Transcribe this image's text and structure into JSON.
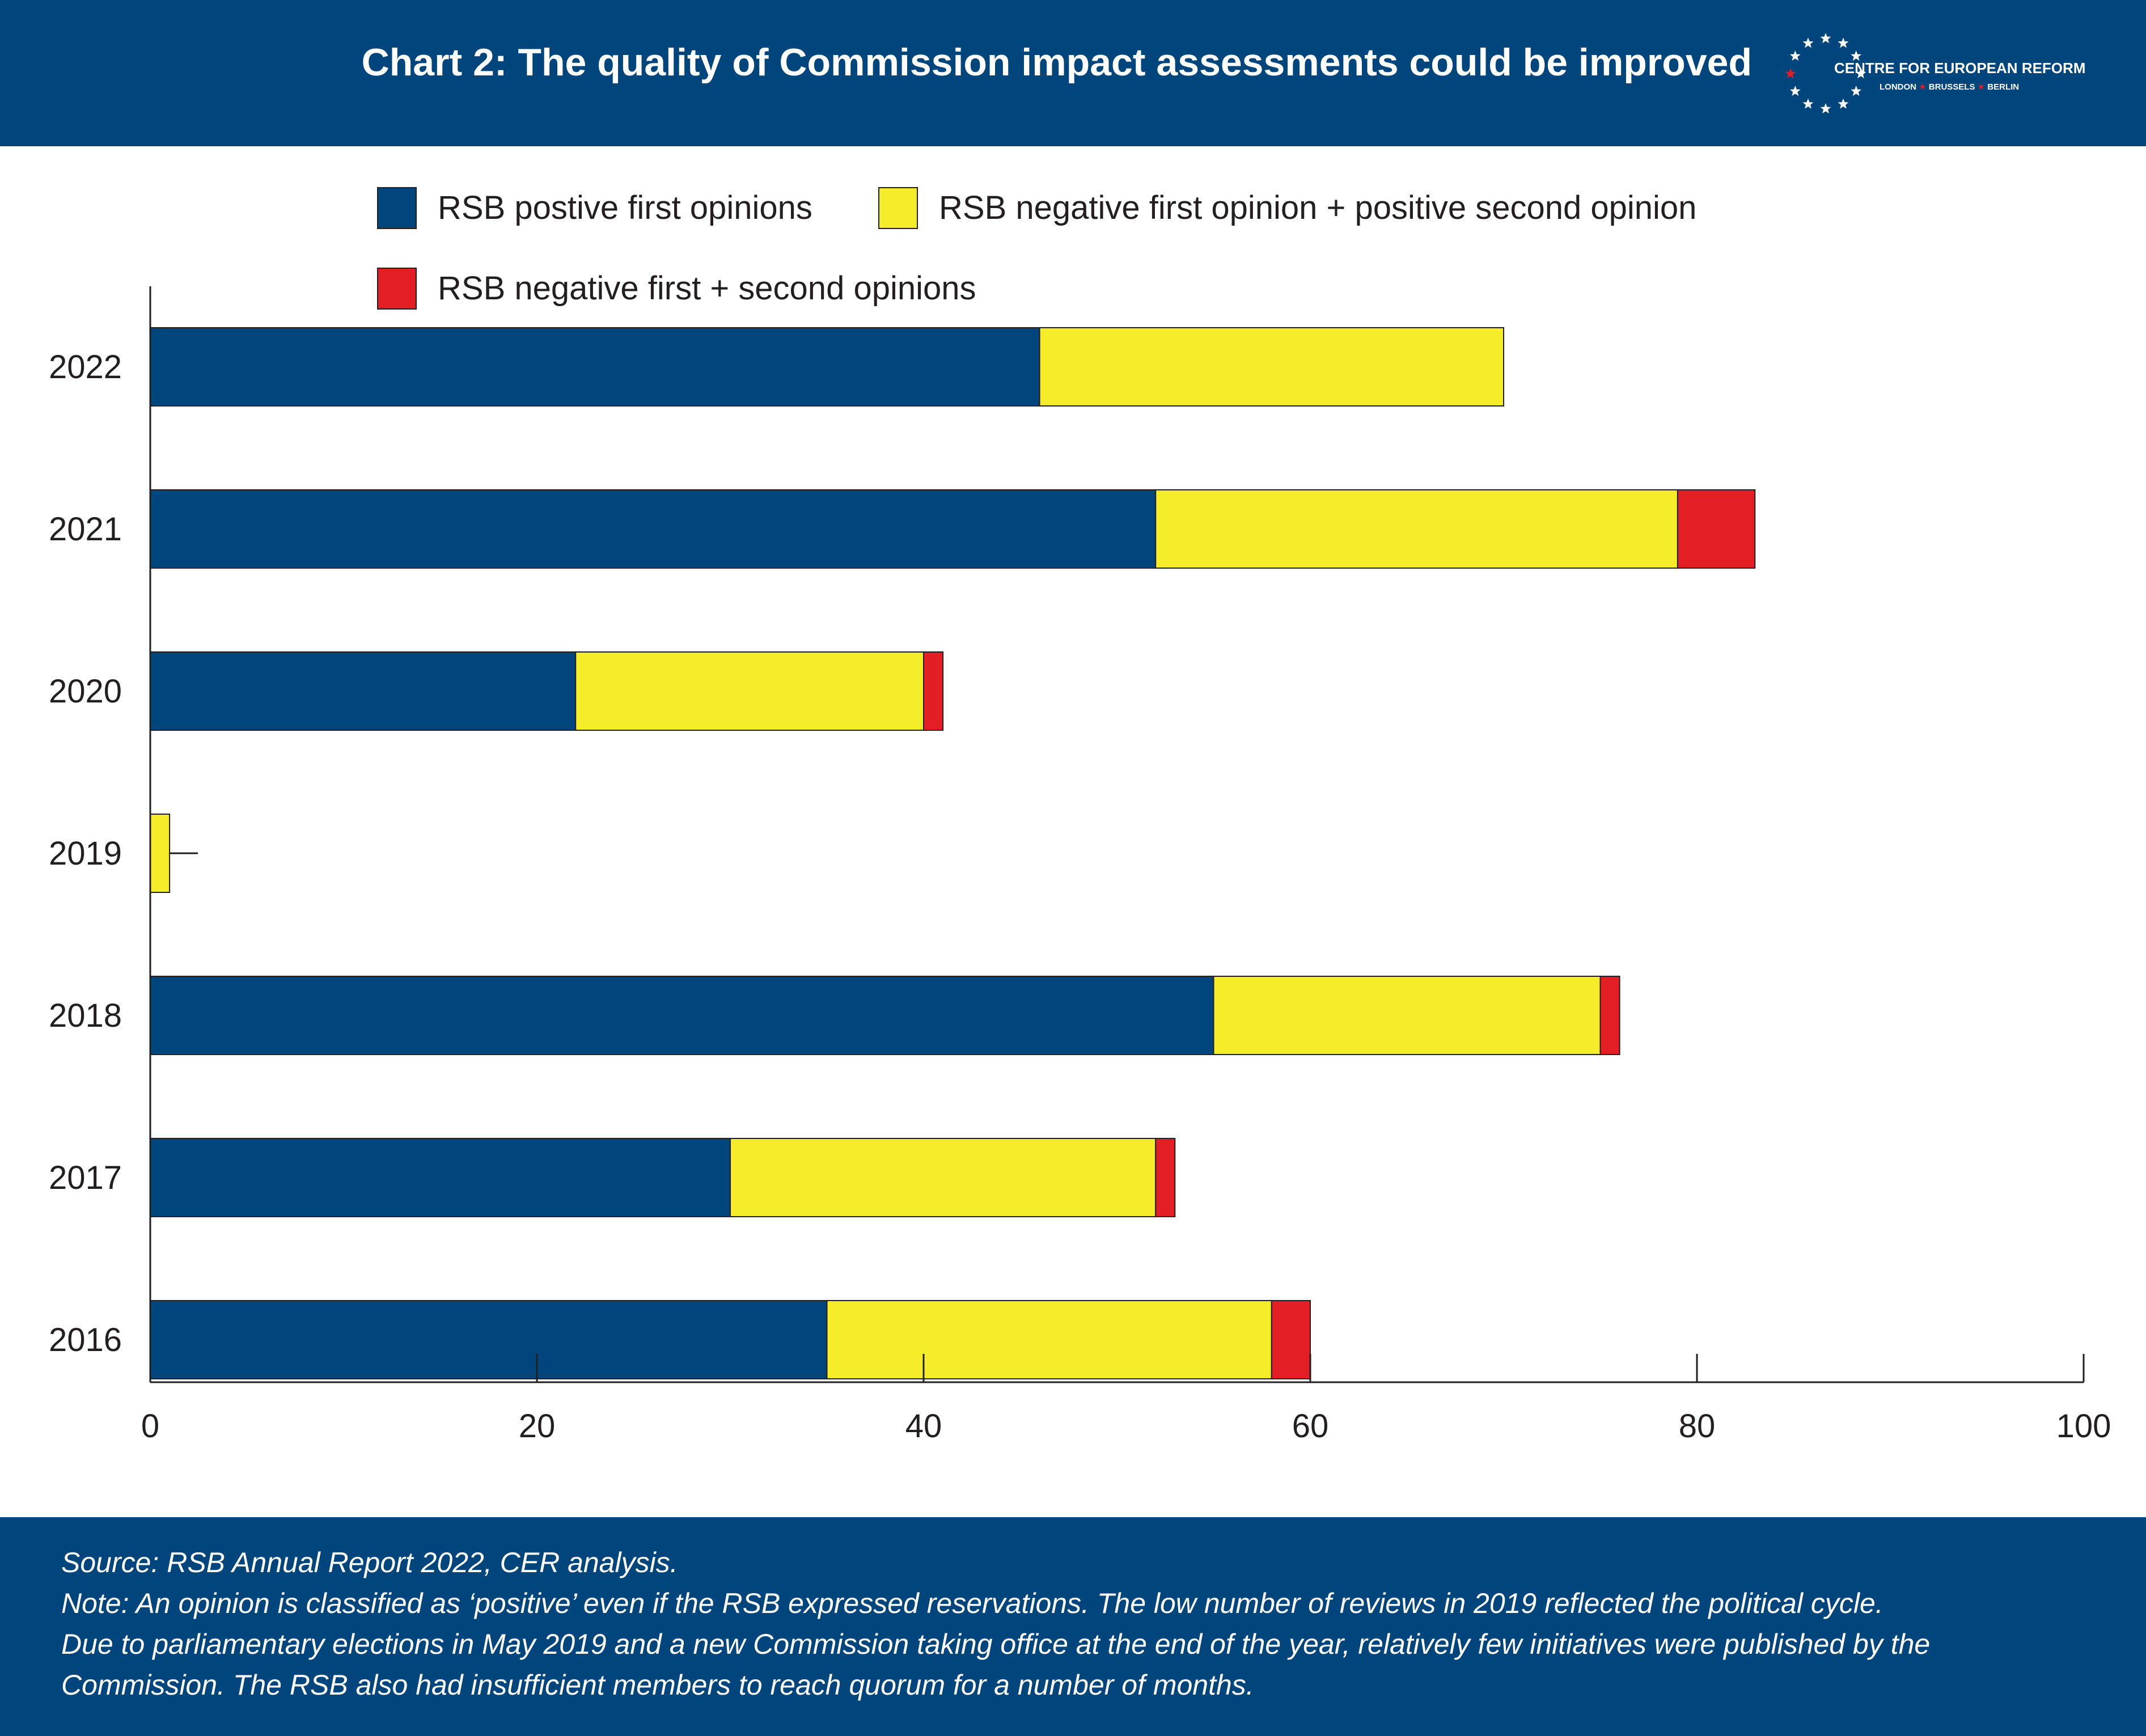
{
  "header": {
    "title": "Chart 2: The quality of Commission impact assessments could be improved",
    "logo_name": "CENTRE FOR EUROPEAN REFORM",
    "logo_cities": [
      "LONDON",
      "BRUSSELS",
      "BERLIN"
    ]
  },
  "colors": {
    "header_bg": "#00457c",
    "positive": "#00457c",
    "negative_positive": "#f5ed2a",
    "negative_negative": "#e31e24",
    "accent_red": "#e31e24"
  },
  "chart_data": {
    "type": "bar",
    "orientation": "horizontal",
    "stacked": true,
    "categories": [
      "2022",
      "2021",
      "2020",
      "2019",
      "2018",
      "2017",
      "2016"
    ],
    "series": [
      {
        "name": "RSB postive first opinions",
        "values": [
          46,
          52,
          22,
          0,
          55,
          30,
          35
        ]
      },
      {
        "name": "RSB negative first opinion + positive second opinion",
        "values": [
          24,
          27,
          18,
          1,
          20,
          22,
          23
        ]
      },
      {
        "name": "RSB negative first + second opinions",
        "values": [
          0,
          4,
          1,
          0,
          1,
          1,
          2
        ]
      }
    ],
    "xlim": [
      0,
      100
    ],
    "xticks": [
      "0",
      "20",
      "40",
      "60",
      "80",
      "100"
    ],
    "legend_position": "top",
    "grid": false
  },
  "footer": {
    "lines": [
      "Source: RSB Annual Report 2022, CER analysis.",
      "Note: An opinion is classified as ‘positive’ even if the RSB expressed reservations. The low number of reviews in 2019 reflected the political cycle.",
      "Due to parliamentary elections in May 2019 and a new Commission taking office at the end of the year, relatively few initiatives were published by the",
      "Commission. The RSB also had insufficient members to reach quorum for a number of months."
    ]
  }
}
